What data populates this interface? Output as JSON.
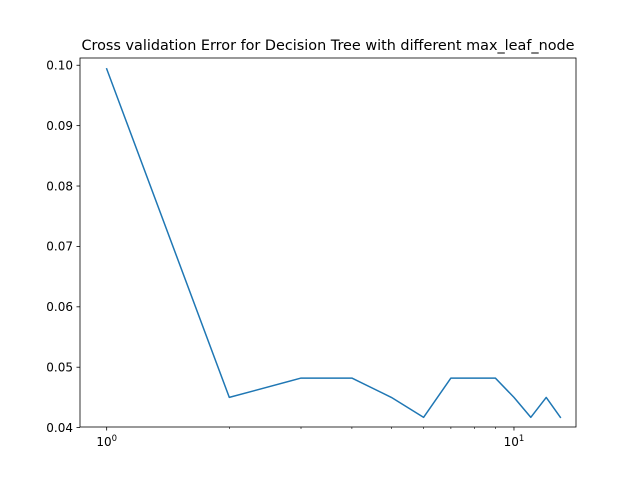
{
  "chart_data": {
    "type": "line",
    "title": "Cross validation Error for Decision Tree with different max_leaf_node",
    "xlabel": "",
    "ylabel": "",
    "xscale": "log",
    "xlim": [
      0.86,
      14.2
    ],
    "ylim": [
      0.0401,
      0.1012
    ],
    "grid": false,
    "legend": "none",
    "x_major_ticks": [
      {
        "value": 1,
        "base": "10",
        "exp": "0"
      },
      {
        "value": 10,
        "base": "10",
        "exp": "1"
      }
    ],
    "x_minor_ticks": [
      2,
      3,
      4,
      5,
      6,
      7,
      8,
      9
    ],
    "y_ticks": [
      {
        "value": 0.04,
        "label": "0.04"
      },
      {
        "value": 0.05,
        "label": "0.05"
      },
      {
        "value": 0.06,
        "label": "0.06"
      },
      {
        "value": 0.07,
        "label": "0.07"
      },
      {
        "value": 0.08,
        "label": "0.08"
      },
      {
        "value": 0.09,
        "label": "0.09"
      },
      {
        "value": 0.1,
        "label": "0.10"
      }
    ],
    "series": [
      {
        "color": "#1f77b4",
        "x": [
          1,
          2,
          3,
          4,
          5,
          6,
          7,
          8,
          9,
          10,
          11,
          12,
          13
        ],
        "y": [
          0.0994,
          0.045,
          0.0482,
          0.0482,
          0.045,
          0.0417,
          0.0482,
          0.0482,
          0.0482,
          0.045,
          0.0417,
          0.045,
          0.0417
        ]
      }
    ]
  }
}
